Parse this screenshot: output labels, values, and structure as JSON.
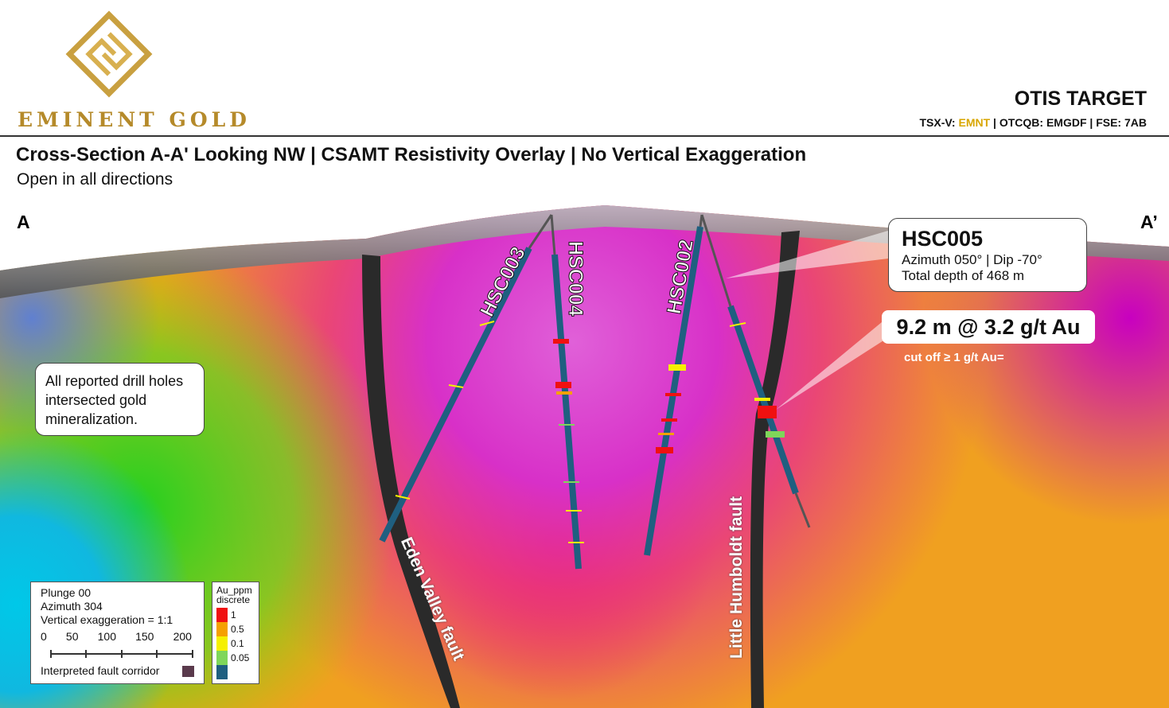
{
  "header": {
    "logo_text": "EMINENT GOLD",
    "target_title": "OTIS TARGET",
    "tickers": {
      "prefix": "TSX-V: ",
      "symbol": "EMNT",
      "rest": " | OTCQB: EMGDF | FSE: 7AB"
    }
  },
  "title": "Cross-Section A-A' Looking NW | CSAMT Resistivity Overlay | No Vertical Exaggeration",
  "subtitle": "Open in all directions",
  "section_ends": {
    "left": "A",
    "right": "A’"
  },
  "note": "All reported drill holes intersected gold mineralization.",
  "drill_holes": [
    "HSC003",
    "HSC004",
    "HSC002"
  ],
  "faults": [
    "Eden Valley fault",
    "Little Humboldt fault"
  ],
  "callout": {
    "hole": "HSC005",
    "line1": "Azimuth 050° | Dip -70°",
    "line2": "Total depth of 468 m",
    "grade": "9.2 m @ 3.2 g/t Au",
    "cutoff": "cut off ≥ 1 g/t Au="
  },
  "legend": {
    "plunge": "Plunge 00",
    "azimuth": "Azimuth 304",
    "vertical_exaggeration": "Vertical exaggeration = 1:1",
    "scale_ticks": [
      "0",
      "50",
      "100",
      "150",
      "200"
    ],
    "fault_corridor": "Interpreted fault corridor"
  },
  "au_legend": {
    "title1": "Au_ppm",
    "title2": "discrete",
    "classes": [
      {
        "label": "1",
        "color": "#f01010"
      },
      {
        "label": "0.5",
        "color": "#f5a000"
      },
      {
        "label": "0.1",
        "color": "#f5f000"
      },
      {
        "label": "0.05",
        "color": "#7fd65a"
      },
      {
        "label": "",
        "color": "#1f5f80"
      }
    ]
  },
  "colors": {
    "accent_gold": "#d8a600",
    "hole": "#1f5f80"
  }
}
